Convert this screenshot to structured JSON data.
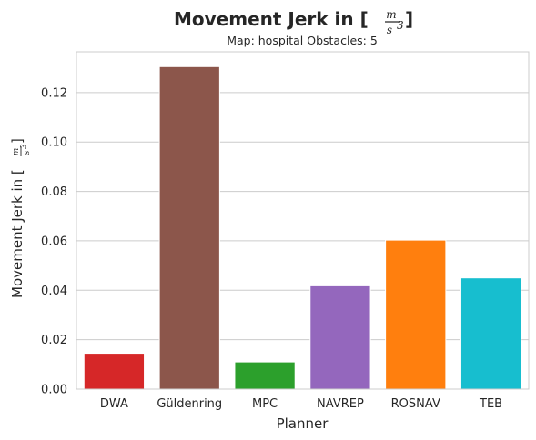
{
  "chart_data": {
    "type": "bar",
    "title": "Movement Jerk in [m/s³]",
    "subtitle": "Map: hospital Obstacles: 5",
    "xlabel": "Planner",
    "ylabel": "Movement Jerk in [m/s³]",
    "categories": [
      "DWA",
      "Güldenring",
      "MPC",
      "NAVREP",
      "ROSNAV",
      "TEB"
    ],
    "values": [
      0.0145,
      0.1305,
      0.011,
      0.0418,
      0.0603,
      0.045
    ],
    "colors": [
      "#d62728",
      "#8c564b",
      "#2ca02c",
      "#9467bd",
      "#ff7f0e",
      "#17becf"
    ],
    "yticks": [
      "0.00",
      "0.02",
      "0.04",
      "0.06",
      "0.08",
      "0.10",
      "0.12"
    ],
    "ylim": [
      0,
      0.1365
    ],
    "grid": "horizontal",
    "legend": "none"
  },
  "title_parts": {
    "prefix": "Movement Jerk in [",
    "numerator": "m",
    "denominator": "s",
    "exponent": "3",
    "suffix": "]"
  }
}
